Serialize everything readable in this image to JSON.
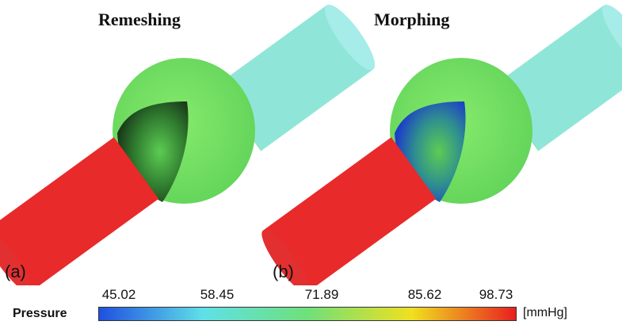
{
  "panels": [
    {
      "title": "Remeshing",
      "letter": "(a)"
    },
    {
      "title": "Morphing",
      "letter": "(b)"
    }
  ],
  "legend": {
    "label": "Pressure",
    "unit": "[mmHg]",
    "ticks": [
      "45.02",
      "58.45",
      "71.89",
      "85.62",
      "98.73"
    ],
    "colors": [
      "#1f4fe0",
      "#5fe0e8",
      "#6fe07a",
      "#f0e020",
      "#e82020"
    ]
  }
}
